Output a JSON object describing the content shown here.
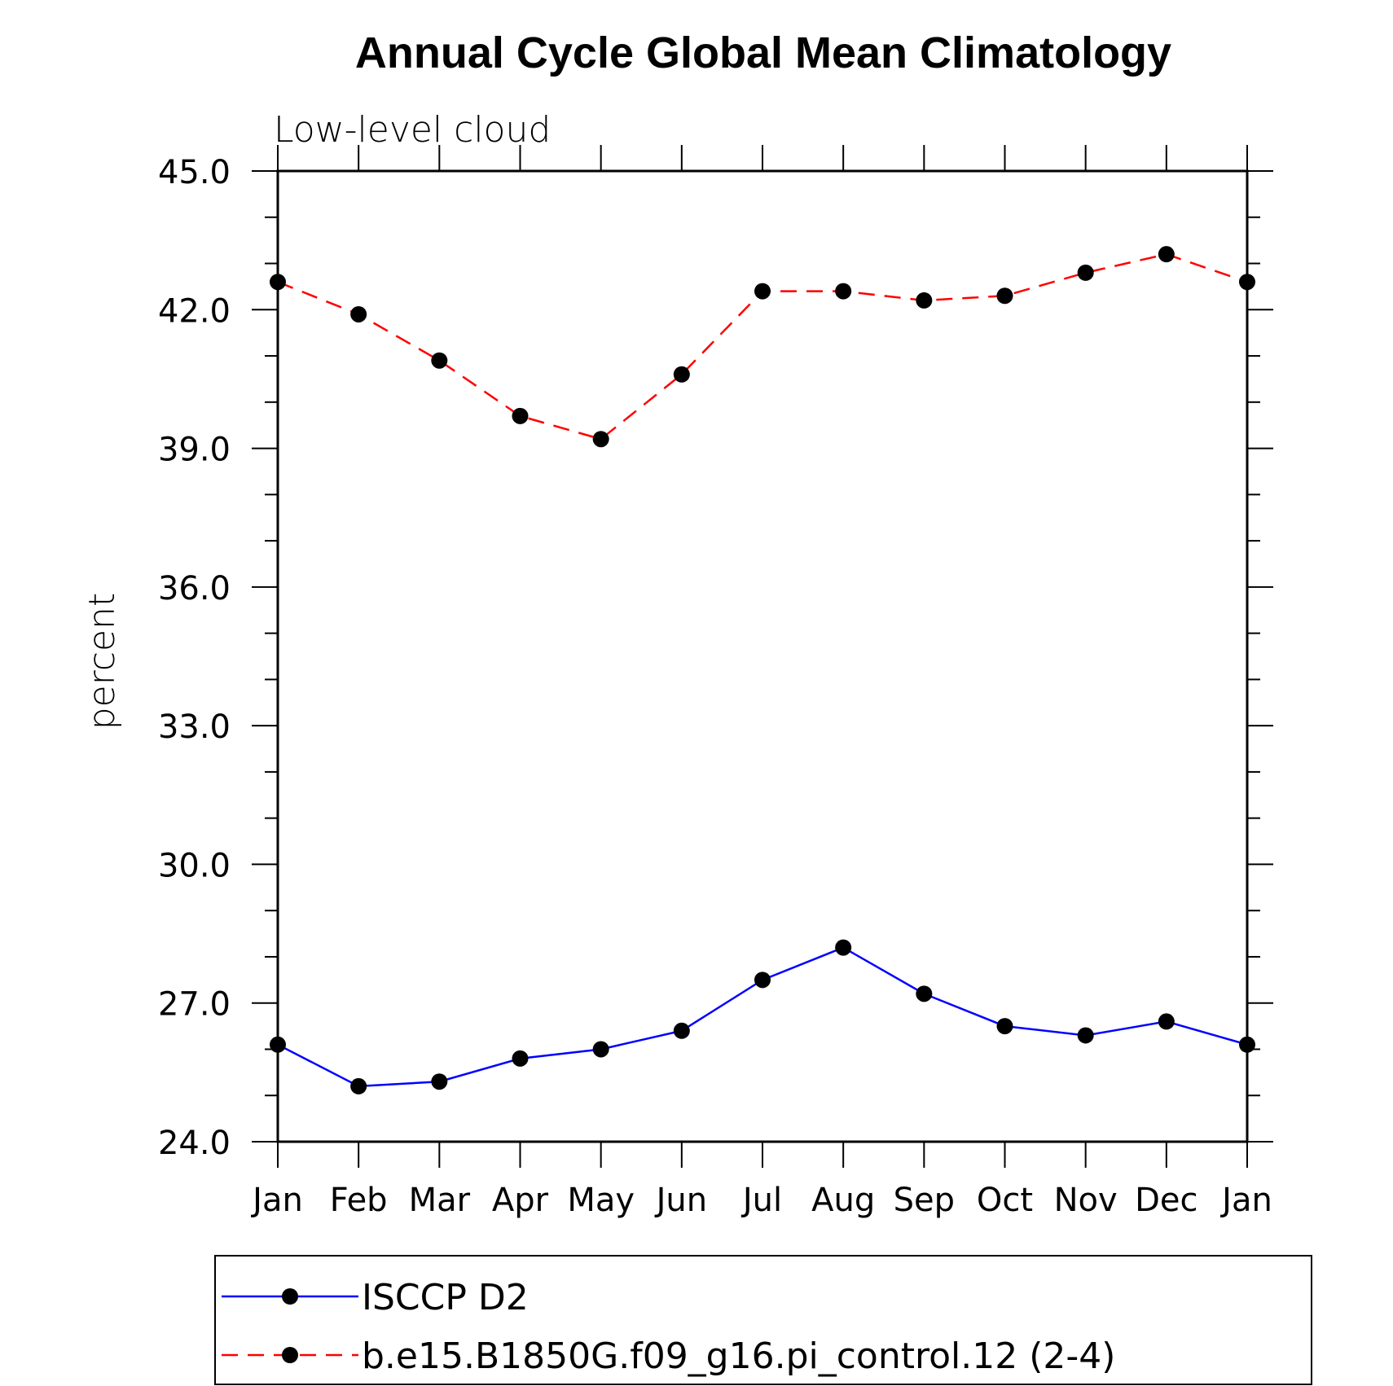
{
  "chart_data": {
    "type": "line",
    "title": "Annual Cycle Global Mean Climatology",
    "subtitle": "Low-level cloud",
    "xlabel": "",
    "ylabel": "percent",
    "ylim": [
      24.0,
      45.0
    ],
    "yticks": [
      "24.0",
      "27.0",
      "30.0",
      "33.0",
      "36.0",
      "39.0",
      "42.0",
      "45.0"
    ],
    "categories": [
      "Jan",
      "Feb",
      "Mar",
      "Apr",
      "May",
      "Jun",
      "Jul",
      "Aug",
      "Sep",
      "Oct",
      "Nov",
      "Dec",
      "Jan"
    ],
    "series": [
      {
        "name": "ISCCP D2",
        "color": "#0000ff",
        "dash": "solid",
        "values": [
          26.1,
          25.2,
          25.3,
          25.8,
          26.0,
          26.4,
          27.5,
          28.2,
          27.2,
          26.5,
          26.3,
          26.6,
          26.1
        ]
      },
      {
        "name": "b.e15.B1850G.f09_g16.pi_control.12 (2-4)",
        "color": "#ff0000",
        "dash": "dashed",
        "values": [
          42.6,
          41.9,
          40.9,
          39.7,
          39.2,
          40.6,
          42.4,
          42.4,
          42.2,
          42.3,
          42.8,
          43.2,
          42.6
        ]
      }
    ],
    "marker": "filled-circle",
    "grid": false,
    "legend_position": "bottom"
  }
}
